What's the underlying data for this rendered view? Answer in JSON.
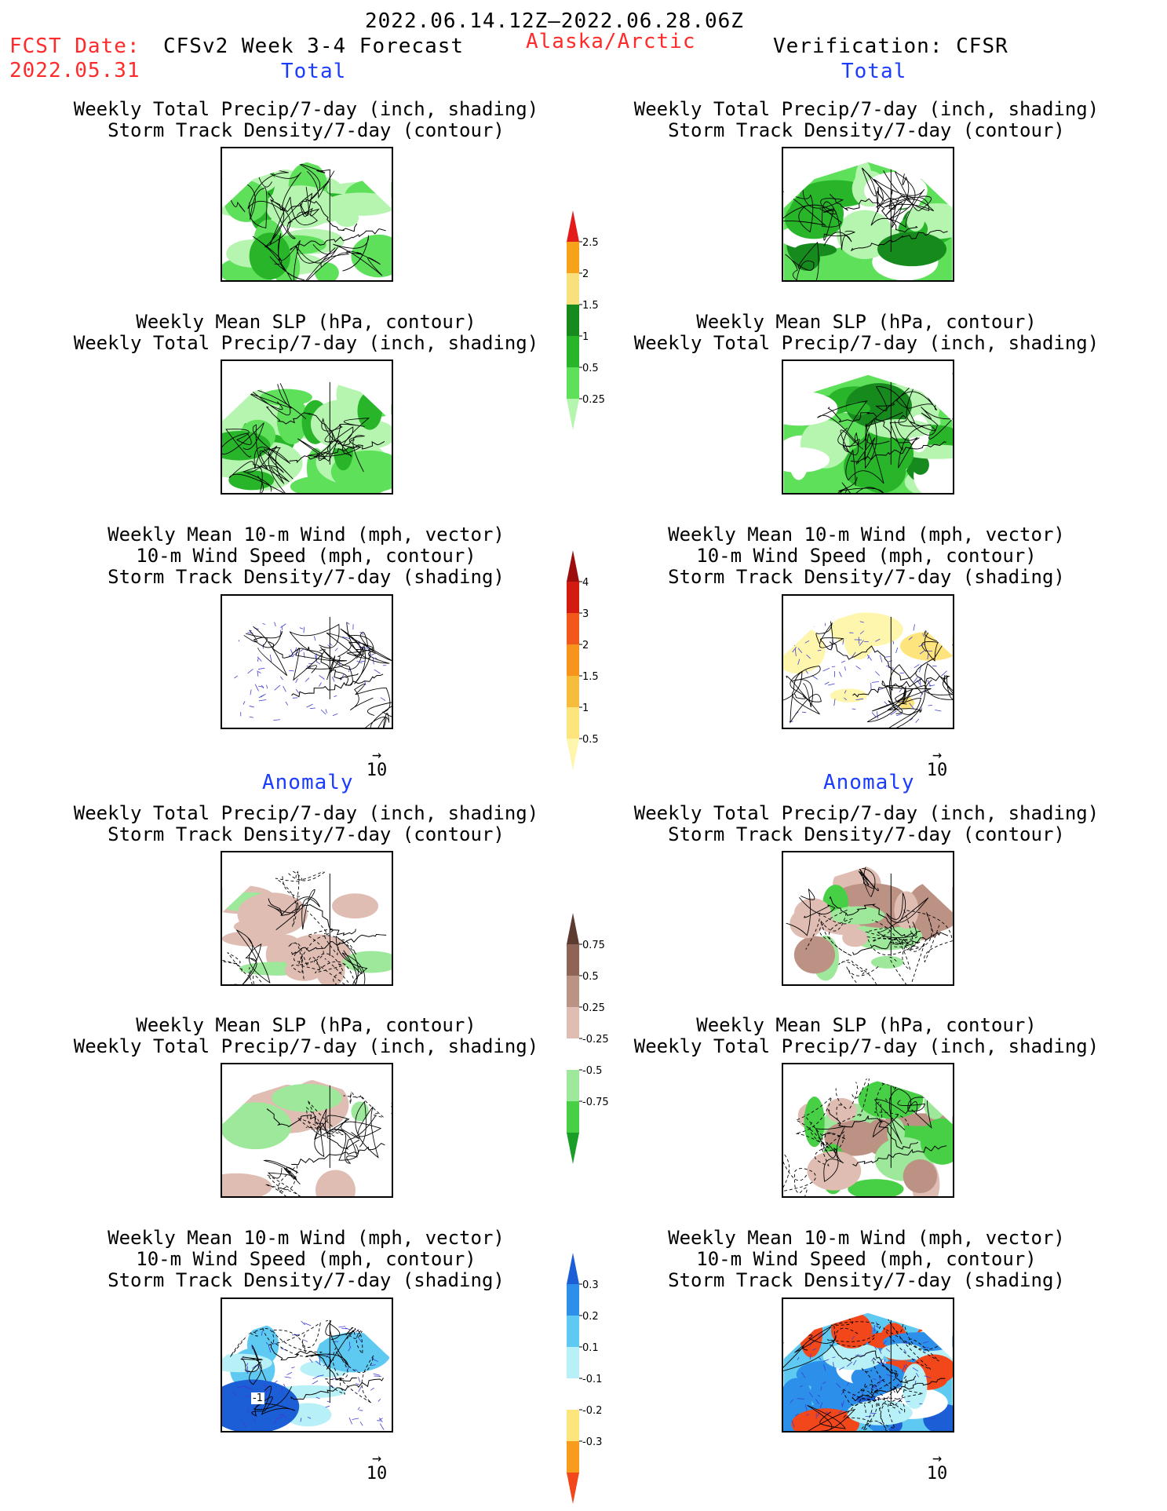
{
  "header": {
    "date_range": "2022.06.14.12Z–2022.06.28.06Z",
    "fcst_label": "FCST Date:",
    "fcst_date": "2022.05.31",
    "model": "CFSv2 Week 3-4 Forecast",
    "region": "Alaska/Arctic",
    "verification": "Verification: CFSR",
    "left_total": "Total",
    "right_total": "Total",
    "left_anomaly": "Anomaly",
    "right_anomaly": "Anomaly"
  },
  "panel_titles": {
    "precip_storm": [
      "Weekly Total Precip/7-day (inch, shading)",
      "Storm Track Density/7-day (contour)"
    ],
    "slp_precip": [
      "Weekly Mean SLP (hPa, contour)",
      "Weekly Total Precip/7-day (inch, shading)"
    ],
    "wind": [
      "Weekly Mean 10-m Wind (mph, vector)",
      "10-m Wind Speed (mph, contour)",
      "Storm Track Density/7-day (shading)"
    ]
  },
  "ref_vector": {
    "label": "10",
    "arrow": "→"
  },
  "contour_label": "-1",
  "chart_data": [
    {
      "type": "heatmap",
      "name": "colorbar-total-precip",
      "levels": [
        "0.25",
        "0.5",
        "1",
        "1.5",
        "2",
        "2.5"
      ],
      "colors": [
        "#b6f5b0",
        "#5ee05a",
        "#28b52a",
        "#168a1c",
        "#f9e07c",
        "#f7a21b",
        "#e31b1b"
      ]
    },
    {
      "type": "heatmap",
      "name": "colorbar-total-storm-density",
      "levels": [
        "0.5",
        "1",
        "1.5",
        "2",
        "3",
        "4"
      ],
      "colors": [
        "#fff6ae",
        "#fde47c",
        "#f6bd3c",
        "#f7941d",
        "#f2571b",
        "#d41b12",
        "#9c0e0e"
      ]
    },
    {
      "type": "heatmap",
      "name": "colorbar-anomaly-precip",
      "levels": [
        "0.75",
        "0.5",
        "0.25",
        "-0.25",
        "-0.5",
        "-0.75"
      ],
      "colors": [
        "#1a9e28",
        "#47cf46",
        "#9de89a",
        "#ffffff",
        "#dfbdb3",
        "#bc9284",
        "#8f6356",
        "#5e3b31"
      ]
    },
    {
      "type": "heatmap",
      "name": "colorbar-anomaly-storm-density",
      "levels": [
        "0.3",
        "0.2",
        "0.1",
        "-0.1",
        "-0.2",
        "-0.3"
      ],
      "colors": [
        "#f2461b",
        "#f79c1d",
        "#fde47c",
        "#ffffff",
        "#b7f0f7",
        "#5ecaf2",
        "#2c90ea",
        "#1c5ed6"
      ]
    }
  ]
}
